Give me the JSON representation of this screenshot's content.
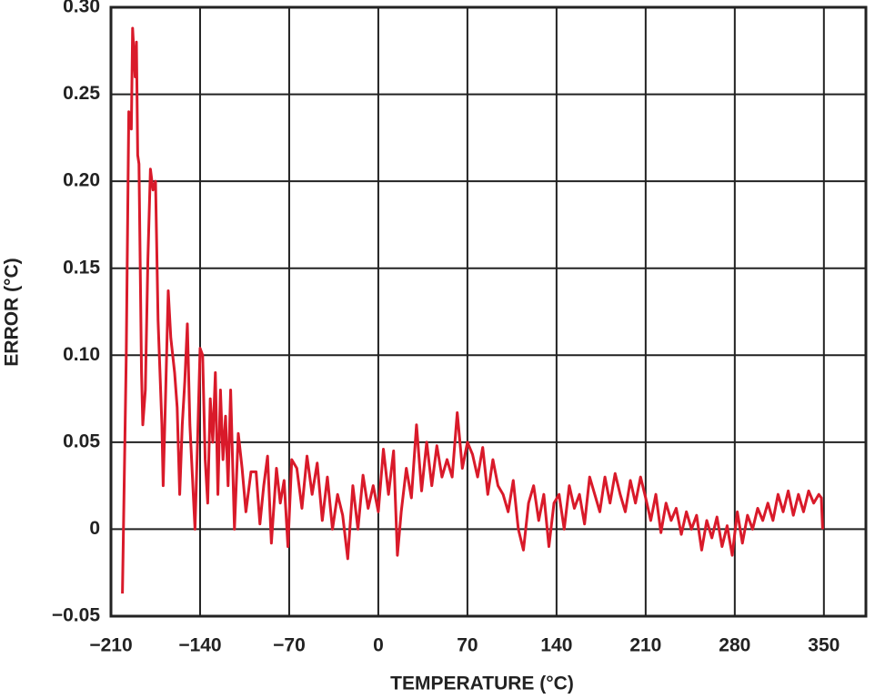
{
  "chart_data": {
    "type": "line",
    "x_label": "TEMPERATURE (°C)",
    "y_label": "ERROR (°C)",
    "color": "#d91a2a",
    "grid": true,
    "xlim": [
      -210,
      383
    ],
    "ylim": [
      -0.05,
      0.3
    ],
    "xticks": [
      {
        "value": -210,
        "label": "−210"
      },
      {
        "value": -140,
        "label": "−140"
      },
      {
        "value": -70,
        "label": "−70"
      },
      0,
      70,
      140,
      210,
      280,
      350
    ],
    "yticks": [
      {
        "value": -0.05,
        "label": "−0.05"
      },
      0,
      0.05,
      {
        "value": 0.1,
        "label": "0.10"
      },
      0.15,
      {
        "value": 0.2,
        "label": "0.20"
      },
      0.25,
      {
        "value": 0.3,
        "label": "0.30"
      }
    ],
    "x": [
      -201,
      -198,
      -196,
      -194,
      -193,
      -191,
      -190,
      -189,
      -188,
      -186,
      -185,
      -183,
      -181,
      -179,
      -177,
      -175,
      -173,
      -170,
      -169,
      -167,
      -165,
      -163,
      -160,
      -158,
      -156,
      -154,
      -152,
      -150,
      -148,
      -146,
      -144,
      -142,
      -140,
      -138,
      -136,
      -134,
      -132,
      -130,
      -128,
      -126,
      -124,
      -122,
      -120,
      -118,
      -116,
      -113,
      -110,
      -107,
      -104,
      -100,
      -96,
      -93,
      -90,
      -87,
      -84,
      -80,
      -77,
      -74,
      -71,
      -68,
      -64,
      -60,
      -56,
      -52,
      -48,
      -44,
      -40,
      -36,
      -32,
      -28,
      -24,
      -20,
      -16,
      -12,
      -8,
      -4,
      0,
      4,
      8,
      12,
      15,
      18,
      22,
      26,
      30,
      34,
      38,
      42,
      46,
      50,
      54,
      58,
      62,
      66,
      70,
      74,
      78,
      82,
      86,
      90,
      94,
      98,
      102,
      106,
      110,
      114,
      118,
      122,
      126,
      130,
      134,
      138,
      142,
      146,
      150,
      154,
      158,
      162,
      166,
      170,
      174,
      178,
      182,
      186,
      190,
      194,
      198,
      202,
      206,
      210,
      214,
      218,
      222,
      226,
      230,
      234,
      238,
      242,
      246,
      250,
      254,
      258,
      262,
      266,
      270,
      274,
      278,
      282,
      286,
      290,
      294,
      298,
      302,
      306,
      310,
      314,
      318,
      322,
      326,
      330,
      334,
      338,
      342,
      346,
      348,
      349
    ],
    "values": [
      -0.037,
      0.1,
      0.24,
      0.23,
      0.288,
      0.26,
      0.28,
      0.215,
      0.21,
      0.09,
      0.06,
      0.08,
      0.155,
      0.207,
      0.195,
      0.2,
      0.12,
      0.06,
      0.025,
      0.08,
      0.137,
      0.11,
      0.09,
      0.07,
      0.02,
      0.06,
      0.085,
      0.118,
      0.06,
      0.03,
      0.0,
      0.05,
      0.104,
      0.1,
      0.04,
      0.015,
      0.075,
      0.05,
      0.09,
      0.02,
      0.08,
      0.04,
      0.065,
      0.025,
      0.08,
      0.0,
      0.055,
      0.035,
      0.01,
      0.033,
      0.033,
      0.003,
      0.025,
      0.042,
      -0.008,
      0.035,
      0.015,
      0.028,
      -0.01,
      0.04,
      0.035,
      0.012,
      0.042,
      0.02,
      0.038,
      0.005,
      0.03,
      0.0,
      0.02,
      0.008,
      -0.017,
      0.025,
      0.0,
      0.031,
      0.012,
      0.025,
      0.01,
      0.046,
      0.02,
      0.045,
      -0.015,
      0.01,
      0.035,
      0.018,
      0.06,
      0.022,
      0.05,
      0.025,
      0.048,
      0.03,
      0.04,
      0.03,
      0.067,
      0.035,
      0.05,
      0.043,
      0.03,
      0.047,
      0.02,
      0.04,
      0.025,
      0.02,
      0.01,
      0.028,
      0.0,
      -0.012,
      0.015,
      0.025,
      0.005,
      0.02,
      -0.01,
      0.015,
      0.02,
      0.0,
      0.025,
      0.012,
      0.02,
      0.003,
      0.03,
      0.02,
      0.01,
      0.03,
      0.015,
      0.032,
      0.02,
      0.01,
      0.028,
      0.015,
      0.03,
      0.018,
      0.005,
      0.02,
      -0.002,
      0.015,
      0.005,
      0.012,
      -0.003,
      0.01,
      0.0,
      0.008,
      -0.012,
      0.005,
      -0.005,
      0.007,
      -0.01,
      0.002,
      -0.015,
      0.01,
      -0.008,
      0.008,
      0.0,
      0.012,
      0.005,
      0.015,
      0.005,
      0.02,
      0.01,
      0.022,
      0.008,
      0.02,
      0.01,
      0.022,
      0.015,
      0.02,
      0.018,
      0.0
    ]
  }
}
